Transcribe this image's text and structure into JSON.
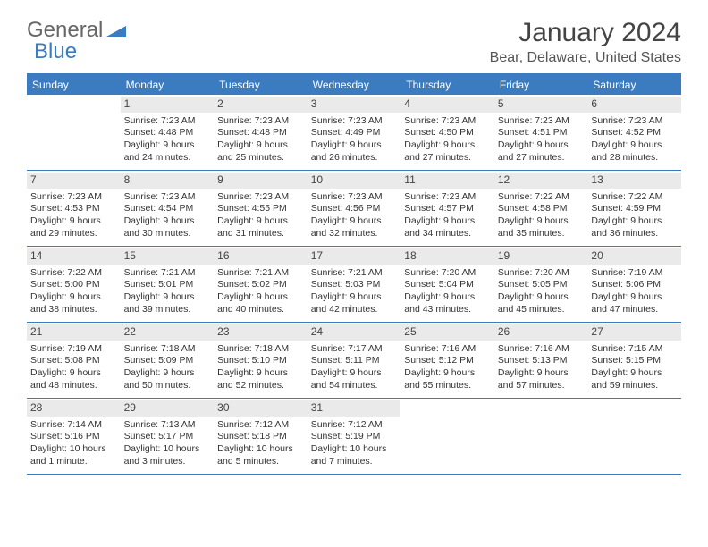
{
  "logo": {
    "part1": "General",
    "part2": "Blue"
  },
  "title": "January 2024",
  "location": "Bear, Delaware, United States",
  "colors": {
    "accent": "#3b7bbf",
    "dayHeaderBg": "#eaeaea",
    "textPrimary": "#333333",
    "textMuted": "#666666",
    "background": "#ffffff"
  },
  "typography": {
    "title_fontsize_pt": 22,
    "location_fontsize_pt": 12,
    "dow_fontsize_pt": 9,
    "daynum_fontsize_pt": 9,
    "detail_fontsize_pt": 8
  },
  "daysOfWeek": [
    "Sunday",
    "Monday",
    "Tuesday",
    "Wednesday",
    "Thursday",
    "Friday",
    "Saturday"
  ],
  "weeks": [
    [
      {
        "num": "",
        "lines": [
          "",
          "",
          "",
          ""
        ]
      },
      {
        "num": "1",
        "lines": [
          "Sunrise: 7:23 AM",
          "Sunset: 4:48 PM",
          "Daylight: 9 hours",
          "and 24 minutes."
        ]
      },
      {
        "num": "2",
        "lines": [
          "Sunrise: 7:23 AM",
          "Sunset: 4:48 PM",
          "Daylight: 9 hours",
          "and 25 minutes."
        ]
      },
      {
        "num": "3",
        "lines": [
          "Sunrise: 7:23 AM",
          "Sunset: 4:49 PM",
          "Daylight: 9 hours",
          "and 26 minutes."
        ]
      },
      {
        "num": "4",
        "lines": [
          "Sunrise: 7:23 AM",
          "Sunset: 4:50 PM",
          "Daylight: 9 hours",
          "and 27 minutes."
        ]
      },
      {
        "num": "5",
        "lines": [
          "Sunrise: 7:23 AM",
          "Sunset: 4:51 PM",
          "Daylight: 9 hours",
          "and 27 minutes."
        ]
      },
      {
        "num": "6",
        "lines": [
          "Sunrise: 7:23 AM",
          "Sunset: 4:52 PM",
          "Daylight: 9 hours",
          "and 28 minutes."
        ]
      }
    ],
    [
      {
        "num": "7",
        "lines": [
          "Sunrise: 7:23 AM",
          "Sunset: 4:53 PM",
          "Daylight: 9 hours",
          "and 29 minutes."
        ]
      },
      {
        "num": "8",
        "lines": [
          "Sunrise: 7:23 AM",
          "Sunset: 4:54 PM",
          "Daylight: 9 hours",
          "and 30 minutes."
        ]
      },
      {
        "num": "9",
        "lines": [
          "Sunrise: 7:23 AM",
          "Sunset: 4:55 PM",
          "Daylight: 9 hours",
          "and 31 minutes."
        ]
      },
      {
        "num": "10",
        "lines": [
          "Sunrise: 7:23 AM",
          "Sunset: 4:56 PM",
          "Daylight: 9 hours",
          "and 32 minutes."
        ]
      },
      {
        "num": "11",
        "lines": [
          "Sunrise: 7:23 AM",
          "Sunset: 4:57 PM",
          "Daylight: 9 hours",
          "and 34 minutes."
        ]
      },
      {
        "num": "12",
        "lines": [
          "Sunrise: 7:22 AM",
          "Sunset: 4:58 PM",
          "Daylight: 9 hours",
          "and 35 minutes."
        ]
      },
      {
        "num": "13",
        "lines": [
          "Sunrise: 7:22 AM",
          "Sunset: 4:59 PM",
          "Daylight: 9 hours",
          "and 36 minutes."
        ]
      }
    ],
    [
      {
        "num": "14",
        "lines": [
          "Sunrise: 7:22 AM",
          "Sunset: 5:00 PM",
          "Daylight: 9 hours",
          "and 38 minutes."
        ]
      },
      {
        "num": "15",
        "lines": [
          "Sunrise: 7:21 AM",
          "Sunset: 5:01 PM",
          "Daylight: 9 hours",
          "and 39 minutes."
        ]
      },
      {
        "num": "16",
        "lines": [
          "Sunrise: 7:21 AM",
          "Sunset: 5:02 PM",
          "Daylight: 9 hours",
          "and 40 minutes."
        ]
      },
      {
        "num": "17",
        "lines": [
          "Sunrise: 7:21 AM",
          "Sunset: 5:03 PM",
          "Daylight: 9 hours",
          "and 42 minutes."
        ]
      },
      {
        "num": "18",
        "lines": [
          "Sunrise: 7:20 AM",
          "Sunset: 5:04 PM",
          "Daylight: 9 hours",
          "and 43 minutes."
        ]
      },
      {
        "num": "19",
        "lines": [
          "Sunrise: 7:20 AM",
          "Sunset: 5:05 PM",
          "Daylight: 9 hours",
          "and 45 minutes."
        ]
      },
      {
        "num": "20",
        "lines": [
          "Sunrise: 7:19 AM",
          "Sunset: 5:06 PM",
          "Daylight: 9 hours",
          "and 47 minutes."
        ]
      }
    ],
    [
      {
        "num": "21",
        "lines": [
          "Sunrise: 7:19 AM",
          "Sunset: 5:08 PM",
          "Daylight: 9 hours",
          "and 48 minutes."
        ]
      },
      {
        "num": "22",
        "lines": [
          "Sunrise: 7:18 AM",
          "Sunset: 5:09 PM",
          "Daylight: 9 hours",
          "and 50 minutes."
        ]
      },
      {
        "num": "23",
        "lines": [
          "Sunrise: 7:18 AM",
          "Sunset: 5:10 PM",
          "Daylight: 9 hours",
          "and 52 minutes."
        ]
      },
      {
        "num": "24",
        "lines": [
          "Sunrise: 7:17 AM",
          "Sunset: 5:11 PM",
          "Daylight: 9 hours",
          "and 54 minutes."
        ]
      },
      {
        "num": "25",
        "lines": [
          "Sunrise: 7:16 AM",
          "Sunset: 5:12 PM",
          "Daylight: 9 hours",
          "and 55 minutes."
        ]
      },
      {
        "num": "26",
        "lines": [
          "Sunrise: 7:16 AM",
          "Sunset: 5:13 PM",
          "Daylight: 9 hours",
          "and 57 minutes."
        ]
      },
      {
        "num": "27",
        "lines": [
          "Sunrise: 7:15 AM",
          "Sunset: 5:15 PM",
          "Daylight: 9 hours",
          "and 59 minutes."
        ]
      }
    ],
    [
      {
        "num": "28",
        "lines": [
          "Sunrise: 7:14 AM",
          "Sunset: 5:16 PM",
          "Daylight: 10 hours",
          "and 1 minute."
        ]
      },
      {
        "num": "29",
        "lines": [
          "Sunrise: 7:13 AM",
          "Sunset: 5:17 PM",
          "Daylight: 10 hours",
          "and 3 minutes."
        ]
      },
      {
        "num": "30",
        "lines": [
          "Sunrise: 7:12 AM",
          "Sunset: 5:18 PM",
          "Daylight: 10 hours",
          "and 5 minutes."
        ]
      },
      {
        "num": "31",
        "lines": [
          "Sunrise: 7:12 AM",
          "Sunset: 5:19 PM",
          "Daylight: 10 hours",
          "and 7 minutes."
        ]
      },
      {
        "num": "",
        "lines": [
          "",
          "",
          "",
          ""
        ]
      },
      {
        "num": "",
        "lines": [
          "",
          "",
          "",
          ""
        ]
      },
      {
        "num": "",
        "lines": [
          "",
          "",
          "",
          ""
        ]
      }
    ]
  ]
}
